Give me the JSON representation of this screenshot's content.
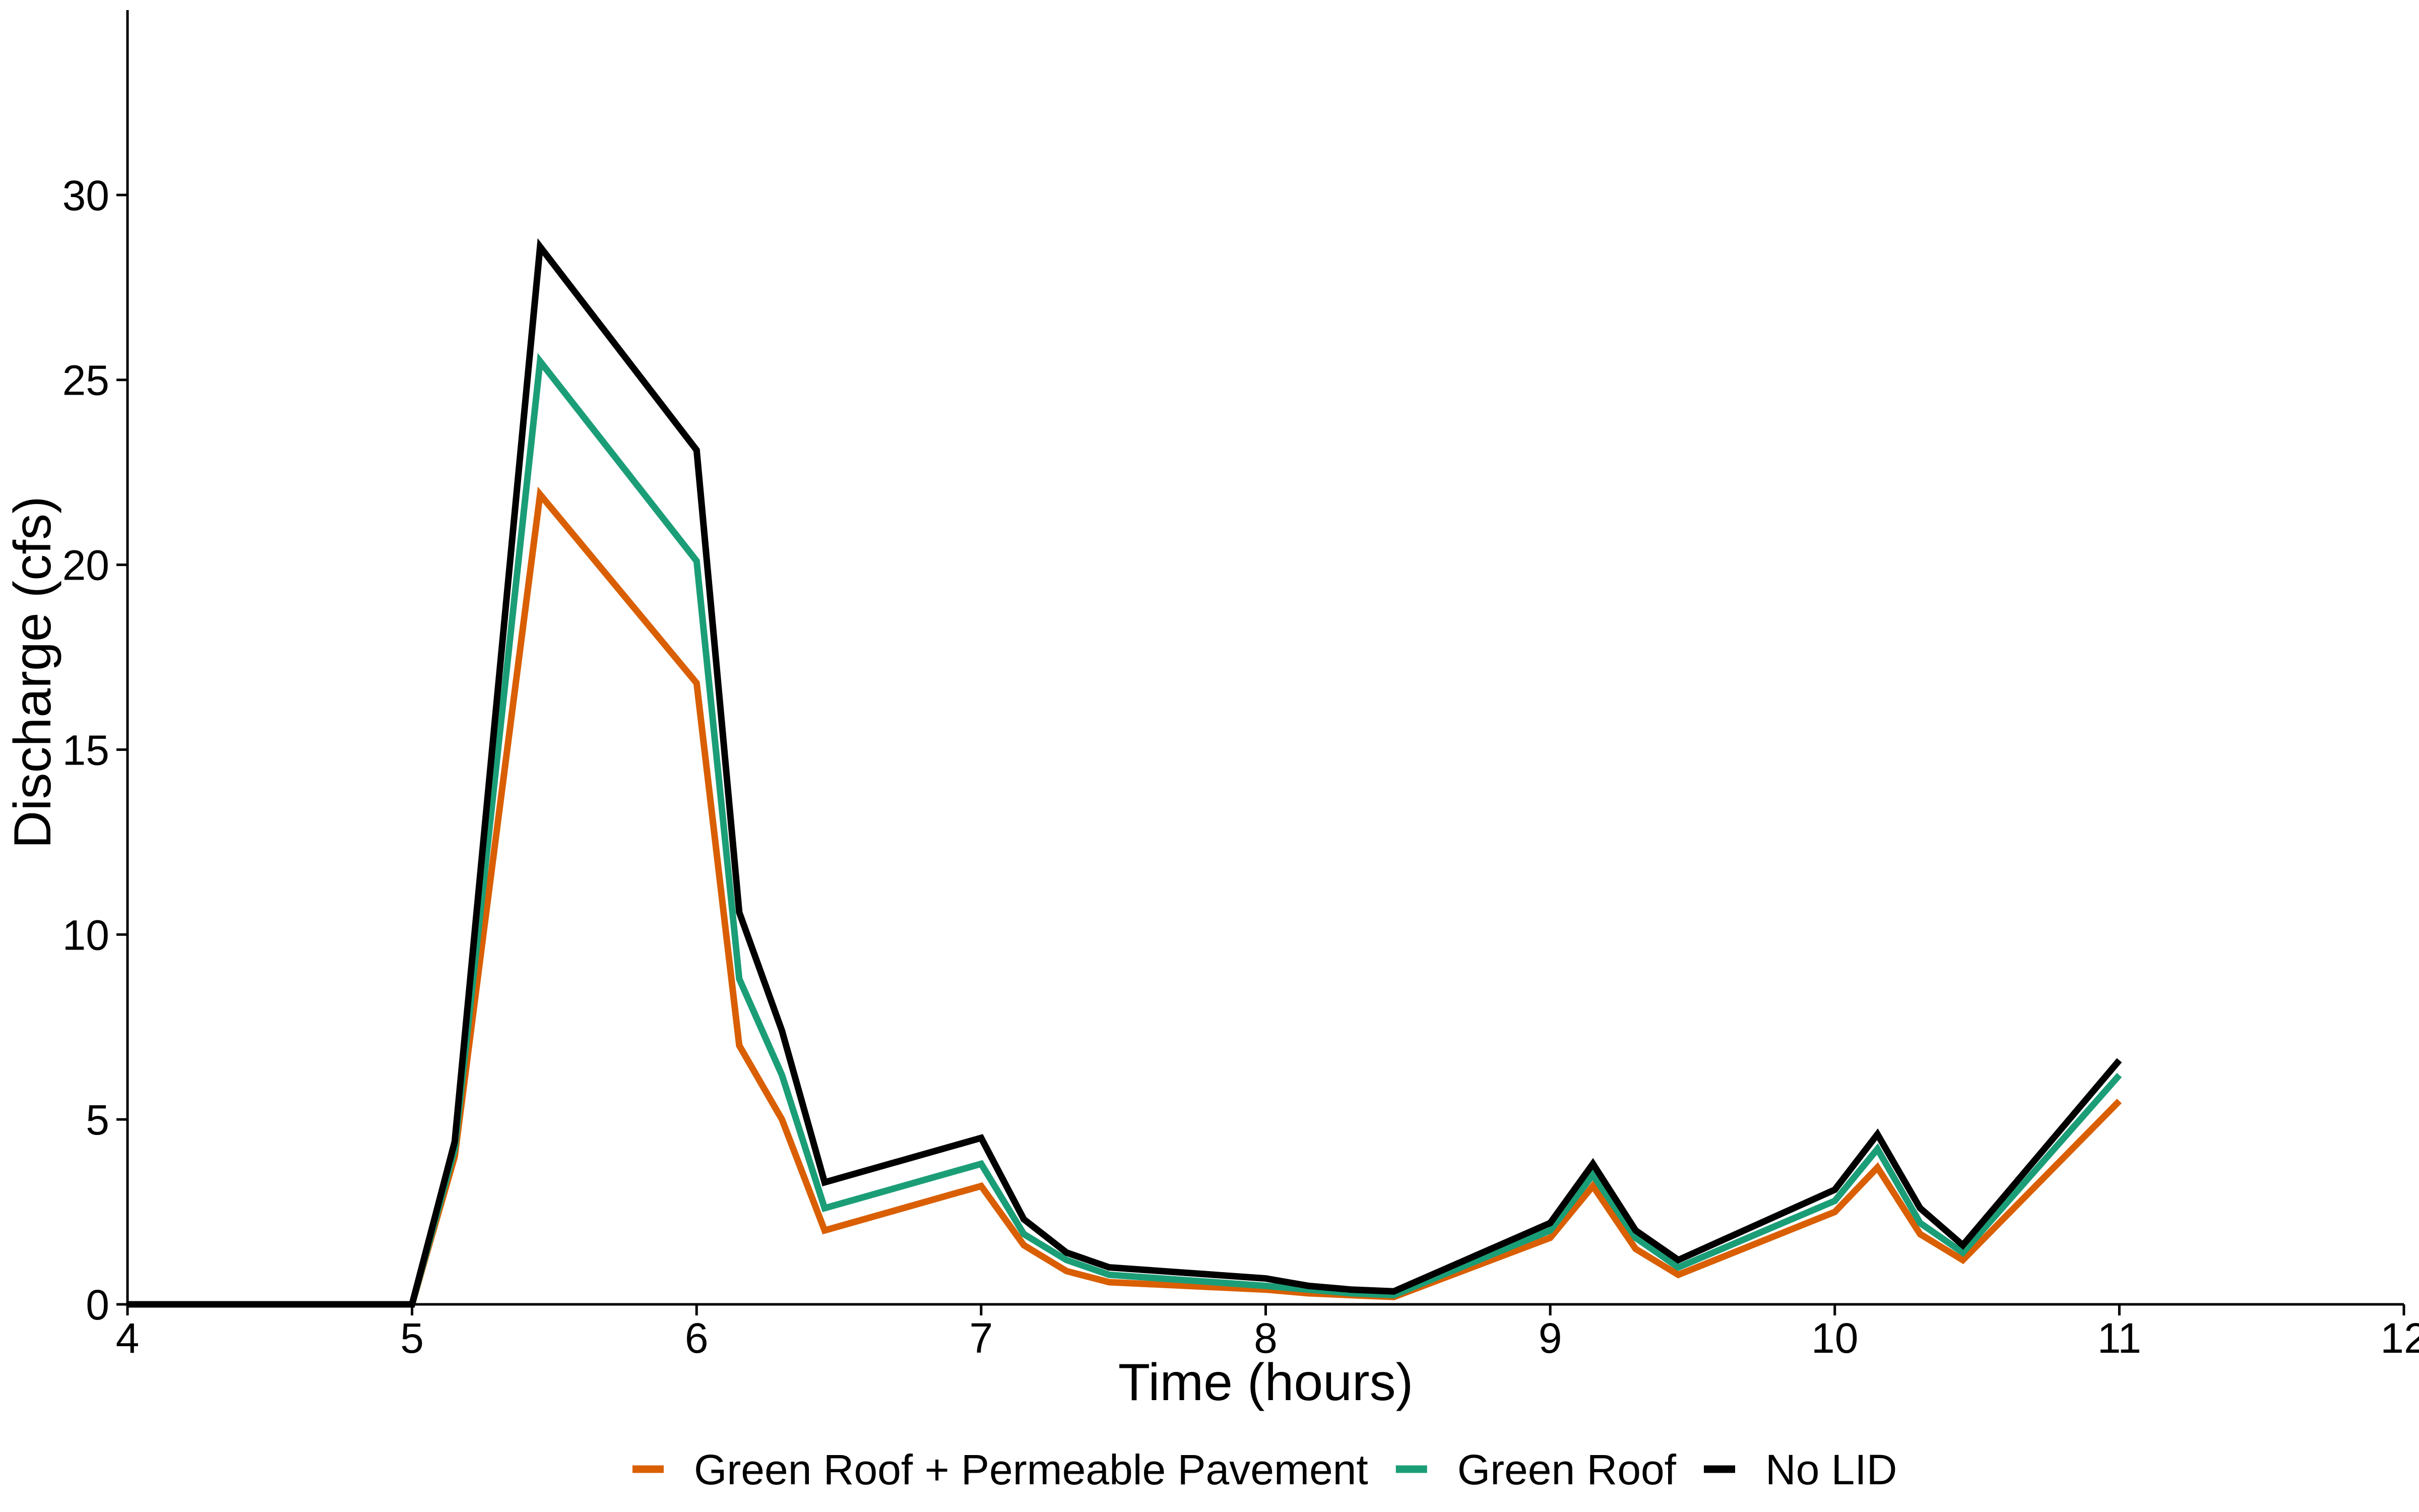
{
  "chart_data": {
    "type": "line",
    "title": "",
    "xlabel": "Time (hours)",
    "ylabel": "Discharge (cfs)",
    "xlim": [
      4,
      12
    ],
    "ylim": [
      0,
      35
    ],
    "xticks": [
      4,
      5,
      6,
      7,
      8,
      9,
      10,
      11,
      12
    ],
    "yticks": [
      0,
      5,
      10,
      15,
      20,
      25,
      30
    ],
    "grid": false,
    "legend_position": "bottom",
    "x": [
      4,
      5,
      5.15,
      5.45,
      6,
      6.15,
      6.3,
      6.45,
      7,
      7.15,
      7.3,
      7.45,
      8,
      8.15,
      8.3,
      8.45,
      9,
      9.15,
      9.3,
      9.45,
      10,
      10.15,
      10.3,
      10.45,
      11
    ],
    "series": [
      {
        "name": "Green Roof + Permeable Pavement",
        "color": "#D95F02",
        "values": [
          0,
          0,
          4.0,
          21.9,
          16.8,
          7.0,
          5.0,
          2.0,
          3.2,
          1.6,
          0.9,
          0.6,
          0.4,
          0.3,
          0.25,
          0.2,
          1.8,
          3.2,
          1.5,
          0.8,
          2.5,
          3.7,
          1.9,
          1.2,
          5.5
        ]
      },
      {
        "name": "Green Roof",
        "color": "#1B9E77",
        "values": [
          0,
          0,
          4.2,
          25.5,
          20.1,
          8.8,
          6.2,
          2.6,
          3.8,
          1.9,
          1.2,
          0.8,
          0.5,
          0.4,
          0.3,
          0.25,
          2.0,
          3.5,
          1.8,
          1.0,
          2.8,
          4.2,
          2.2,
          1.4,
          6.2
        ]
      },
      {
        "name": "No LID",
        "color": "#000000",
        "values": [
          0,
          0,
          4.4,
          28.6,
          23.1,
          10.6,
          7.4,
          3.3,
          4.5,
          2.3,
          1.4,
          1.0,
          0.7,
          0.5,
          0.4,
          0.35,
          2.2,
          3.8,
          2.0,
          1.2,
          3.1,
          4.6,
          2.6,
          1.6,
          6.6
        ]
      }
    ]
  }
}
